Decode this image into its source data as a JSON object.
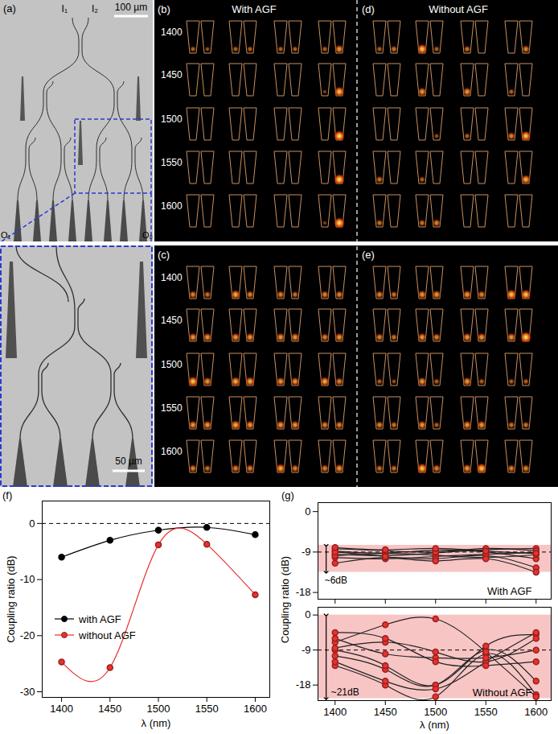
{
  "panels": {
    "a": {
      "label": "(a)",
      "inputs": [
        "I₁",
        "I₂"
      ],
      "outputs": [
        "O₁",
        "O₈"
      ],
      "scale_bar": "100 µm",
      "zoom_scale_bar": "50 µm"
    },
    "mode_images": [
      {
        "label": "(b)",
        "header": "With AGF",
        "row_labels": [
          1400,
          1450,
          1500,
          1550,
          1600
        ],
        "intensity": [
          [
            0.3,
            0.2,
            0.3,
            0.3,
            0.3,
            0.3,
            0.3,
            0.6
          ],
          [
            0,
            0,
            0,
            0,
            0,
            0,
            0.1,
            0.8
          ],
          [
            0,
            0,
            0,
            0,
            0,
            0,
            0,
            0.9
          ],
          [
            0,
            0,
            0,
            0,
            0,
            0,
            0,
            0.9
          ],
          [
            0,
            0,
            0,
            0,
            0,
            0,
            0.1,
            0.9
          ]
        ]
      },
      {
        "label": "(d)",
        "header": "Without AGF",
        "intensity": [
          [
            0.3,
            0.4,
            0.8,
            0.3,
            0.4,
            0,
            0,
            0.5
          ],
          [
            0,
            0,
            0.6,
            0,
            0.6,
            0,
            0.3,
            0
          ],
          [
            0,
            0,
            0,
            0.2,
            0.3,
            0,
            0.5,
            0.8
          ],
          [
            0.4,
            0,
            0.3,
            0,
            0,
            0,
            0,
            0.7
          ],
          [
            0.4,
            0,
            0.4,
            0.5,
            0,
            0,
            0,
            0
          ]
        ]
      },
      {
        "label": "(c)",
        "row_labels": [
          1400,
          1450,
          1500,
          1550,
          1600
        ],
        "intensity": [
          [
            0.5,
            0.4,
            0.7,
            0.5,
            0.5,
            0.4,
            0.5,
            0.5
          ],
          [
            0.6,
            0.6,
            0.6,
            0.6,
            0.6,
            0.6,
            0.5,
            0.6
          ],
          [
            0.8,
            0.6,
            0.7,
            0.7,
            0.6,
            0.6,
            0.7,
            0.5
          ],
          [
            0.6,
            0.6,
            0.7,
            0.6,
            0.6,
            0.6,
            0.5,
            0.5
          ],
          [
            0.5,
            0.4,
            0.5,
            0.5,
            0.7,
            0.5,
            0.5,
            0.6
          ]
        ]
      },
      {
        "label": "(e)",
        "intensity": [
          [
            0.5,
            0.4,
            0.6,
            0.6,
            0.6,
            0.5,
            0.8,
            0.8
          ],
          [
            0.5,
            0.4,
            0.6,
            0.5,
            0.6,
            0.6,
            0.6,
            0.9
          ],
          [
            0.3,
            0.2,
            0.6,
            0.3,
            0.6,
            0.3,
            0.3,
            0.3
          ],
          [
            0.5,
            0.4,
            0.6,
            0.3,
            0.6,
            0.6,
            0.4,
            0.4
          ],
          [
            0.4,
            0.4,
            0.8,
            0.5,
            0.6,
            0.8,
            0.5,
            0.5
          ]
        ]
      }
    ]
  },
  "chart_data": [
    {
      "type": "line",
      "title": "(f)",
      "xlabel": "λ (nm)",
      "ylabel": "Coupling ratio (dB)",
      "x": [
        1400,
        1450,
        1500,
        1550,
        1600
      ],
      "xlim": [
        1380,
        1615
      ],
      "xticks": [
        1400,
        1450,
        1500,
        1550,
        1600
      ],
      "ylim": [
        -31,
        4
      ],
      "yticks": [
        -30,
        -20,
        -10,
        0
      ],
      "reference_line": 0,
      "legend": "left",
      "grid": false,
      "marker": "circle",
      "line_style": "smooth",
      "series": [
        {
          "name": "with AGF",
          "color": "#000000",
          "values": [
            -6,
            -3,
            -1.2,
            -0.7,
            -2
          ]
        },
        {
          "name": "without AGF",
          "color": "#e8312f",
          "values": [
            -24.7,
            -25.7,
            -3.8,
            -3.7,
            -12.7
          ]
        }
      ]
    },
    {
      "type": "line",
      "title": "(g)",
      "xlabel": "λ (nm)",
      "ylabel": "Coupling ratio (dB)",
      "x": [
        1400,
        1450,
        1500,
        1550,
        1600
      ],
      "xlim": [
        1383,
        1615
      ],
      "xticks": [
        1400,
        1450,
        1500,
        1550,
        1600
      ],
      "grid": false,
      "marker": "circle",
      "line_style": "smooth",
      "subplots": [
        {
          "annotation": "With AGF",
          "band": [
            -7.5,
            -13.5
          ],
          "band_label": "~6dB",
          "ylim": [
            -19.5,
            2
          ],
          "yticks": [
            -18,
            -9,
            0
          ],
          "reference_line": -9,
          "tick_labels": "y",
          "series": [
            {
              "color": "#e8312f",
              "values": [
                -9.5,
                -9.8,
                -9.2,
                -8.5,
                -8.2
              ]
            },
            {
              "color": "#e8312f",
              "values": [
                -10.2,
                -10.5,
                -10,
                -9.5,
                -9.1
              ]
            },
            {
              "color": "#e8312f",
              "values": [
                -8.8,
                -9.2,
                -8.6,
                -9,
                -10.5
              ]
            },
            {
              "color": "#e8312f",
              "values": [
                -9.8,
                -9.3,
                -9.7,
                -10.2,
                -9.6
              ]
            },
            {
              "color": "#e8312f",
              "values": [
                -8.3,
                -8.7,
                -9,
                -8.2,
                -8.7
              ]
            },
            {
              "color": "#e8312f",
              "values": [
                -11.5,
                -10.2,
                -10.5,
                -9.8,
                -12.5
              ]
            },
            {
              "color": "#e8312f",
              "values": [
                -9,
                -10,
                -11,
                -10.5,
                -13.5
              ]
            },
            {
              "color": "#e8312f",
              "values": [
                -8,
                -8.5,
                -8.2,
                -8.8,
                -9.3
              ]
            }
          ]
        },
        {
          "annotation": "Without AGF",
          "band": [
            0,
            -21.5
          ],
          "band_label": "~21dB",
          "ylim": [
            -22,
            2
          ],
          "yticks": [
            -18,
            -9,
            0
          ],
          "reference_line": -9,
          "series": [
            {
              "color": "#e8312f",
              "values": [
                -10.5,
                -14,
                -18,
                -9,
                -17
              ]
            },
            {
              "color": "#e8312f",
              "values": [
                -13,
                -18,
                -21,
                -10,
                -20.5
              ]
            },
            {
              "color": "#e8312f",
              "values": [
                -7,
                -2.5,
                -1,
                -9.5,
                -21
              ]
            },
            {
              "color": "#e8312f",
              "values": [
                -9,
                -13,
                -18,
                -8,
                -5
              ]
            },
            {
              "color": "#e8312f",
              "values": [
                -8.5,
                -7,
                -9.5,
                -12,
                -6
              ]
            },
            {
              "color": "#e8312f",
              "values": [
                -12,
                -17,
                -19,
                -12,
                -4.5
              ]
            },
            {
              "color": "#e8312f",
              "values": [
                -6,
                -10,
                -11,
                -11,
                -9
              ]
            },
            {
              "color": "#e8312f",
              "values": [
                -4.5,
                -6,
                -12,
                -13,
                -12
              ]
            }
          ]
        }
      ]
    }
  ]
}
